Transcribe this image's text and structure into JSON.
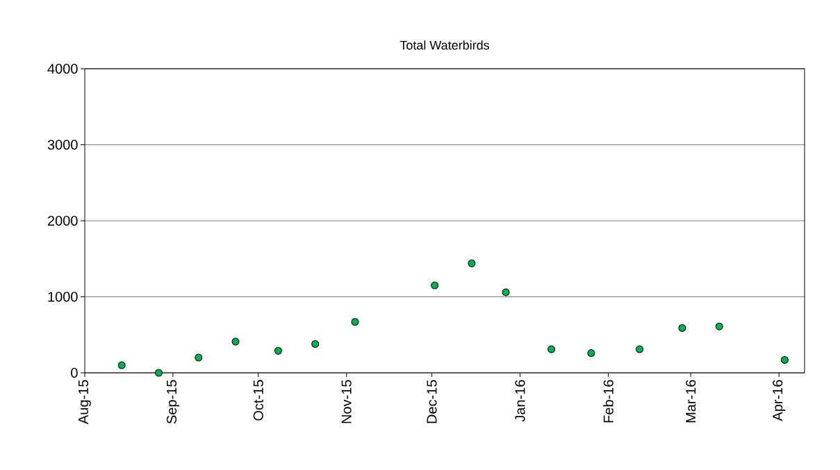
{
  "chart_data": {
    "type": "scatter",
    "title": "Total Waterbirds",
    "x": [
      "2015-08-14",
      "2015-08-27",
      "2015-09-10",
      "2015-09-23",
      "2015-10-08",
      "2015-10-21",
      "2015-11-04",
      "2015-12-02",
      "2015-12-15",
      "2015-12-27",
      "2016-01-12",
      "2016-01-26",
      "2016-02-12",
      "2016-02-27",
      "2016-03-11",
      "2016-04-03"
    ],
    "values": [
      100,
      0,
      200,
      410,
      290,
      380,
      670,
      1150,
      1440,
      1060,
      310,
      260,
      310,
      590,
      610,
      170
    ],
    "color": "#00b050",
    "marker": "circle",
    "grid": "y",
    "xlim": [
      "2015-08-01",
      "2016-04-10"
    ],
    "xticks": [
      {
        "value": "2015-08-01",
        "label": "Aug-15"
      },
      {
        "value": "2015-09-01",
        "label": "Sep-15"
      },
      {
        "value": "2015-10-01",
        "label": "Oct-15"
      },
      {
        "value": "2015-11-01",
        "label": "Nov-15"
      },
      {
        "value": "2015-12-01",
        "label": "Dec-15"
      },
      {
        "value": "2016-01-01",
        "label": "Jan-16"
      },
      {
        "value": "2016-02-01",
        "label": "Feb-16"
      },
      {
        "value": "2016-03-01",
        "label": "Mar-16"
      },
      {
        "value": "2016-04-01",
        "label": "Apr-16"
      }
    ],
    "ylim": [
      0,
      4000
    ],
    "yticks": [
      0,
      1000,
      2000,
      3000,
      4000
    ]
  }
}
